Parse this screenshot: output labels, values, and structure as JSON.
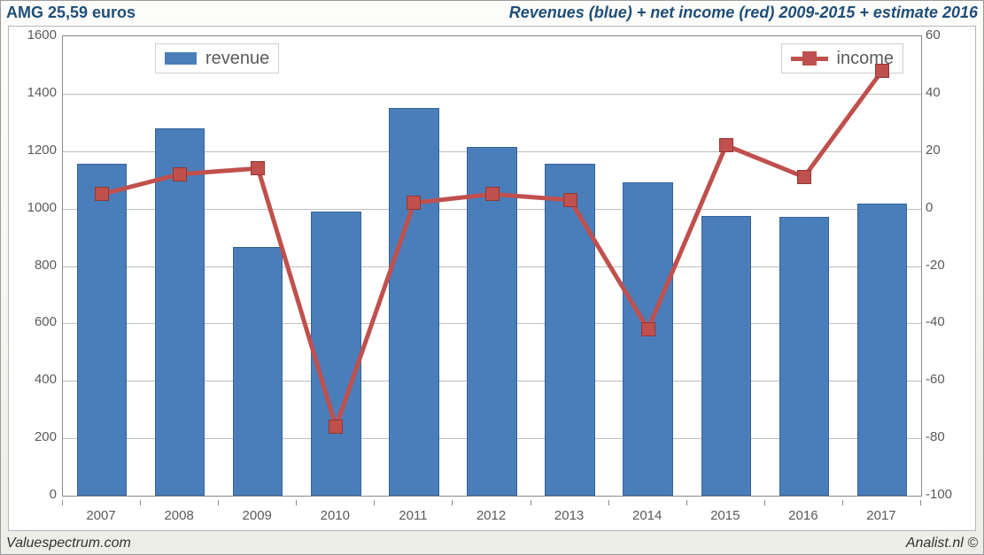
{
  "header": {
    "left": "AMG 25,59 euros",
    "right": "Revenues (blue) + net income (red) 2009-2015 + estimate 2016"
  },
  "footer": {
    "left": "Valuespectrum.com",
    "right": "Analist.nl ©"
  },
  "chart": {
    "type": "bar+line",
    "background_color": "#ffffff",
    "grid_color": "#bfbfbf",
    "plot_border_color": "#8a8a8a",
    "categories": [
      "2007",
      "2008",
      "2009",
      "2010",
      "2011",
      "2012",
      "2013",
      "2014",
      "2015",
      "2016",
      "2017"
    ],
    "bar_series": {
      "label": "revenue",
      "color": "#4a7ebb",
      "border_color": "#36629a",
      "bar_width_ratio": 0.64,
      "values": [
        1155,
        1280,
        865,
        990,
        1350,
        1215,
        1155,
        1090,
        975,
        970,
        1018
      ]
    },
    "line_series": {
      "label": "income",
      "color": "#c0504d",
      "line_width": 5,
      "marker_size": 16,
      "marker_shape": "square",
      "values": [
        5,
        12,
        14,
        -76,
        2,
        5,
        3,
        -42,
        22,
        11,
        48
      ]
    },
    "left_axis": {
      "min": 0,
      "max": 1600,
      "step": 200,
      "fontsize": 15,
      "color": "#5a5a5a"
    },
    "right_axis": {
      "min": -100,
      "max": 60,
      "step": 20,
      "fontsize": 15,
      "color": "#5a5a5a"
    },
    "xaxis_fontsize": 15,
    "legend": {
      "fontsize": 20,
      "border_color": "#cfcfcf",
      "bg": "#ffffff"
    }
  },
  "frame": {
    "outer_bg_top": "#fdfdfb",
    "outer_bg_bottom": "#eeeee8",
    "border_color": "#9a9a9a"
  },
  "typography": {
    "title_color": "#1f4e79",
    "title_fontsize": 18,
    "title_weight": "bold",
    "footer_fontsize": 16,
    "font_family": "Arial"
  }
}
